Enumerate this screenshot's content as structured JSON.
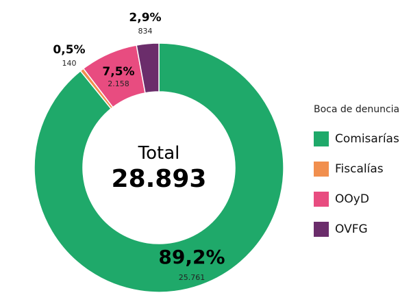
{
  "chart_data": {
    "type": "pie",
    "subtype": "donut",
    "legend_title": "Boca de denuncia",
    "legend_position": "right",
    "center": {
      "label": "Total",
      "value": "28.893"
    },
    "slices": [
      {
        "name": "Comisarías",
        "value": 25761,
        "value_label": "25.761",
        "percent_label": "89,2%",
        "color": "#1fa96a"
      },
      {
        "name": "Fiscalías",
        "value": 140,
        "value_label": "140",
        "percent_label": "0,5%",
        "color": "#f18f4e"
      },
      {
        "name": "OOyD",
        "value": 2158,
        "value_label": "2.158",
        "percent_label": "7,5%",
        "color": "#e84c80"
      },
      {
        "name": "OVFG",
        "value": 834,
        "value_label": "834",
        "percent_label": "2,9%",
        "color": "#6b2d6b"
      }
    ]
  }
}
